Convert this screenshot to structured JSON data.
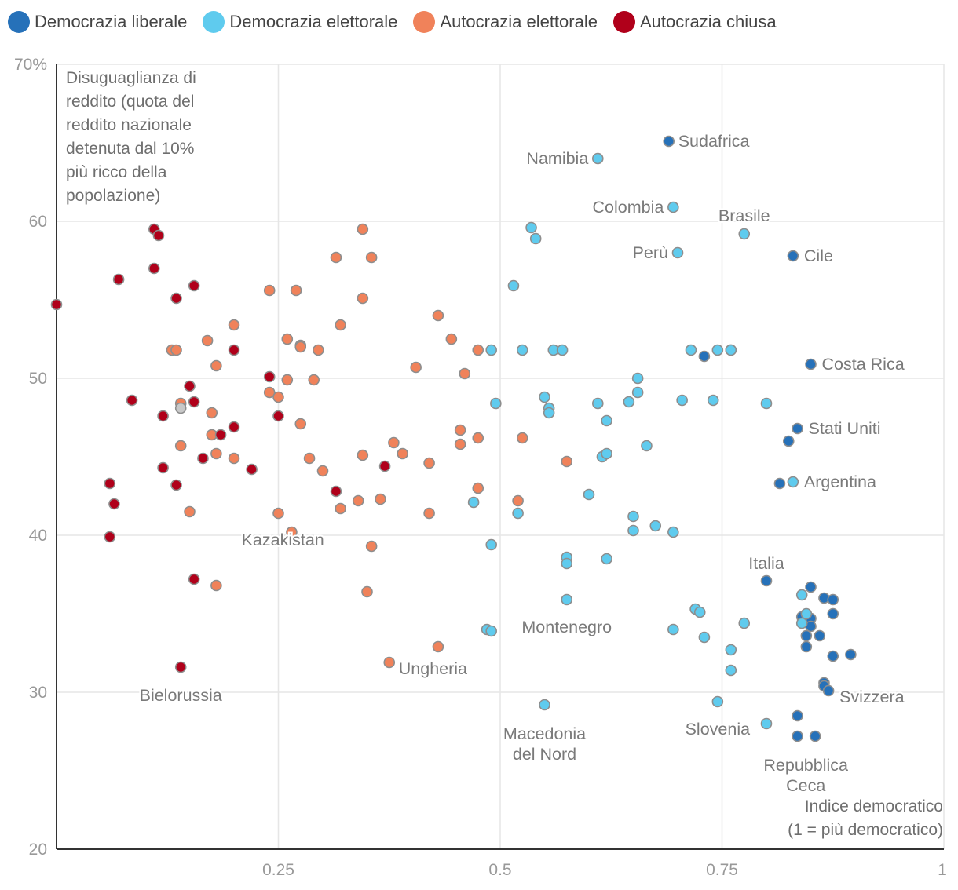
{
  "legend": [
    {
      "label": "Democrazia liberale",
      "color": "#2671b9"
    },
    {
      "label": "Democrazia elettorale",
      "color": "#5fcbee"
    },
    {
      "label": "Autocrazia elettorale",
      "color": "#f0825a"
    },
    {
      "label": "Autocrazia chiusa",
      "color": "#b0001a"
    }
  ],
  "chart_data": {
    "type": "scatter",
    "title": "",
    "ylabel_lines": [
      "Disuguaglianza di",
      "reddito (quota del",
      "reddito nazionale",
      "detenuta dal 10%",
      "più ricco della",
      "popolazione)"
    ],
    "xlabel_lines": [
      "Indice democratico",
      "(1 = più democratico)"
    ],
    "xlim": [
      0,
      1
    ],
    "ylim": [
      20,
      70
    ],
    "x_ticks": [
      0.25,
      0.5,
      0.75,
      1
    ],
    "x_tick_labels": [
      "0.25",
      "0.5",
      "0.75",
      "1"
    ],
    "y_ticks": [
      20,
      30,
      40,
      50,
      60,
      70
    ],
    "y_tick_labels": [
      "20",
      "30",
      "40",
      "50",
      "60",
      "70%"
    ],
    "grid": true,
    "legend_position": "top",
    "unclassified_color": "#c8c8c8",
    "series": [
      {
        "name": "Democrazia liberale",
        "color": "#2671b9",
        "points": [
          [
            0.69,
            65.1
          ],
          [
            0.83,
            57.8
          ],
          [
            0.85,
            50.9
          ],
          [
            0.76,
            51.8
          ],
          [
            0.73,
            51.4
          ],
          [
            0.835,
            46.8
          ],
          [
            0.825,
            46.0
          ],
          [
            0.815,
            43.3
          ],
          [
            0.8,
            37.1
          ],
          [
            0.85,
            36.7
          ],
          [
            0.865,
            36.0
          ],
          [
            0.875,
            35.9
          ],
          [
            0.85,
            34.7
          ],
          [
            0.875,
            35.0
          ],
          [
            0.84,
            34.8
          ],
          [
            0.845,
            33.6
          ],
          [
            0.86,
            33.6
          ],
          [
            0.845,
            32.9
          ],
          [
            0.85,
            34.2
          ],
          [
            0.875,
            32.3
          ],
          [
            0.895,
            32.4
          ],
          [
            0.865,
            30.6
          ],
          [
            0.865,
            30.4
          ],
          [
            0.87,
            30.1
          ],
          [
            0.835,
            28.5
          ],
          [
            0.835,
            27.2
          ],
          [
            0.855,
            27.2
          ]
        ]
      },
      {
        "name": "Democrazia elettorale",
        "color": "#5fcbee",
        "points": [
          [
            0.61,
            64.0
          ],
          [
            0.695,
            60.9
          ],
          [
            0.775,
            59.2
          ],
          [
            0.7,
            58.0
          ],
          [
            0.535,
            59.6
          ],
          [
            0.54,
            58.9
          ],
          [
            0.515,
            55.9
          ],
          [
            0.49,
            51.8
          ],
          [
            0.525,
            51.8
          ],
          [
            0.56,
            51.8
          ],
          [
            0.57,
            51.8
          ],
          [
            0.715,
            51.8
          ],
          [
            0.745,
            51.8
          ],
          [
            0.76,
            51.8
          ],
          [
            0.655,
            50.0
          ],
          [
            0.655,
            49.1
          ],
          [
            0.55,
            48.8
          ],
          [
            0.495,
            48.4
          ],
          [
            0.61,
            48.4
          ],
          [
            0.645,
            48.5
          ],
          [
            0.705,
            48.6
          ],
          [
            0.74,
            48.6
          ],
          [
            0.8,
            48.4
          ],
          [
            0.555,
            48.1
          ],
          [
            0.555,
            47.8
          ],
          [
            0.62,
            47.3
          ],
          [
            0.665,
            45.7
          ],
          [
            0.615,
            45.0
          ],
          [
            0.62,
            45.2
          ],
          [
            0.83,
            43.4
          ],
          [
            0.6,
            42.6
          ],
          [
            0.47,
            42.1
          ],
          [
            0.52,
            41.4
          ],
          [
            0.65,
            41.2
          ],
          [
            0.675,
            40.6
          ],
          [
            0.65,
            40.3
          ],
          [
            0.695,
            40.2
          ],
          [
            0.49,
            39.4
          ],
          [
            0.575,
            38.6
          ],
          [
            0.575,
            38.2
          ],
          [
            0.62,
            38.5
          ],
          [
            0.84,
            36.2
          ],
          [
            0.575,
            35.9
          ],
          [
            0.72,
            35.3
          ],
          [
            0.725,
            35.1
          ],
          [
            0.845,
            35.0
          ],
          [
            0.775,
            34.4
          ],
          [
            0.84,
            34.4
          ],
          [
            0.485,
            34.0
          ],
          [
            0.49,
            33.9
          ],
          [
            0.695,
            34.0
          ],
          [
            0.73,
            33.5
          ],
          [
            0.76,
            32.7
          ],
          [
            0.76,
            31.4
          ],
          [
            0.55,
            29.2
          ],
          [
            0.745,
            29.4
          ],
          [
            0.8,
            28.0
          ]
        ]
      },
      {
        "name": "Autocrazia elettorale",
        "color": "#f0825a",
        "points": [
          [
            0.345,
            59.5
          ],
          [
            0.315,
            57.7
          ],
          [
            0.355,
            57.7
          ],
          [
            0.24,
            55.6
          ],
          [
            0.27,
            55.6
          ],
          [
            0.345,
            55.1
          ],
          [
            0.43,
            54.0
          ],
          [
            0.2,
            53.4
          ],
          [
            0.32,
            53.4
          ],
          [
            0.13,
            51.8
          ],
          [
            0.135,
            51.8
          ],
          [
            0.17,
            52.4
          ],
          [
            0.26,
            52.5
          ],
          [
            0.275,
            52.1
          ],
          [
            0.275,
            52.0
          ],
          [
            0.295,
            51.8
          ],
          [
            0.445,
            52.5
          ],
          [
            0.475,
            51.8
          ],
          [
            0.18,
            50.8
          ],
          [
            0.405,
            50.7
          ],
          [
            0.46,
            50.3
          ],
          [
            0.26,
            49.9
          ],
          [
            0.29,
            49.9
          ],
          [
            0.24,
            49.1
          ],
          [
            0.25,
            48.8
          ],
          [
            0.14,
            48.4
          ],
          [
            0.175,
            47.8
          ],
          [
            0.275,
            47.1
          ],
          [
            0.455,
            46.7
          ],
          [
            0.175,
            46.4
          ],
          [
            0.475,
            46.2
          ],
          [
            0.525,
            46.2
          ],
          [
            0.14,
            45.7
          ],
          [
            0.455,
            45.8
          ],
          [
            0.38,
            45.9
          ],
          [
            0.18,
            45.2
          ],
          [
            0.2,
            44.9
          ],
          [
            0.285,
            44.9
          ],
          [
            0.345,
            45.1
          ],
          [
            0.39,
            45.2
          ],
          [
            0.42,
            44.6
          ],
          [
            0.575,
            44.7
          ],
          [
            0.3,
            44.1
          ],
          [
            0.475,
            43.0
          ],
          [
            0.34,
            42.2
          ],
          [
            0.365,
            42.3
          ],
          [
            0.52,
            42.2
          ],
          [
            0.15,
            41.5
          ],
          [
            0.25,
            41.4
          ],
          [
            0.32,
            41.7
          ],
          [
            0.42,
            41.4
          ],
          [
            0.265,
            40.2
          ],
          [
            0.355,
            39.3
          ],
          [
            0.18,
            36.8
          ],
          [
            0.35,
            36.4
          ],
          [
            0.43,
            32.9
          ],
          [
            0.375,
            31.9
          ]
        ]
      },
      {
        "name": "Autocrazia chiusa",
        "color": "#b0001a",
        "points": [
          [
            0.0,
            54.7
          ],
          [
            0.11,
            59.5
          ],
          [
            0.115,
            59.1
          ],
          [
            0.07,
            56.3
          ],
          [
            0.11,
            57.0
          ],
          [
            0.135,
            55.1
          ],
          [
            0.155,
            55.9
          ],
          [
            0.2,
            51.8
          ],
          [
            0.15,
            49.5
          ],
          [
            0.24,
            50.1
          ],
          [
            0.085,
            48.6
          ],
          [
            0.155,
            48.5
          ],
          [
            0.12,
            47.6
          ],
          [
            0.25,
            47.6
          ],
          [
            0.2,
            46.9
          ],
          [
            0.185,
            46.4
          ],
          [
            0.165,
            44.9
          ],
          [
            0.22,
            44.2
          ],
          [
            0.12,
            44.3
          ],
          [
            0.37,
            44.4
          ],
          [
            0.06,
            43.3
          ],
          [
            0.135,
            43.2
          ],
          [
            0.315,
            42.8
          ],
          [
            0.065,
            42.0
          ],
          [
            0.06,
            39.9
          ],
          [
            0.155,
            37.2
          ],
          [
            0.14,
            31.6
          ]
        ]
      },
      {
        "name": "",
        "color": "#c8c8c8",
        "points": [
          [
            0.14,
            48.1
          ]
        ]
      }
    ],
    "annotations": [
      {
        "text": "Sudafrica",
        "x": 0.69,
        "y": 65.1,
        "anchor": "start",
        "dx": 12,
        "dy": 0
      },
      {
        "text": "Namibia",
        "x": 0.61,
        "y": 64.0,
        "anchor": "end",
        "dx": -12,
        "dy": 0
      },
      {
        "text": "Colombia",
        "x": 0.695,
        "y": 60.9,
        "anchor": "end",
        "dx": -12,
        "dy": 0
      },
      {
        "text": "Brasile",
        "x": 0.775,
        "y": 59.2,
        "anchor": "middle",
        "dx": 0,
        "dy": -23
      },
      {
        "text": "Perù",
        "x": 0.7,
        "y": 58.0,
        "anchor": "end",
        "dx": -12,
        "dy": 0
      },
      {
        "text": "Cile",
        "x": 0.83,
        "y": 57.8,
        "anchor": "start",
        "dx": 14,
        "dy": 0
      },
      {
        "text": "Costa Rica",
        "x": 0.85,
        "y": 50.9,
        "anchor": "start",
        "dx": 14,
        "dy": 0
      },
      {
        "text": "Stati Uniti",
        "x": 0.835,
        "y": 46.8,
        "anchor": "start",
        "dx": 14,
        "dy": 0
      },
      {
        "text": "Argentina",
        "x": 0.83,
        "y": 43.4,
        "anchor": "start",
        "dx": 14,
        "dy": 0
      },
      {
        "text": "Kazakistan",
        "x": 0.255,
        "y": 41.4,
        "anchor": "middle",
        "dx": 0,
        "dy": 34
      },
      {
        "text": "Italia",
        "x": 0.8,
        "y": 37.1,
        "anchor": "middle",
        "dx": 0,
        "dy": -22
      },
      {
        "text": "Montenegro",
        "x": 0.575,
        "y": 35.9,
        "anchor": "middle",
        "dx": 0,
        "dy": 35
      },
      {
        "text": "Ungheria",
        "x": 0.375,
        "y": 31.9,
        "anchor": "start",
        "dx": 12,
        "dy": 8
      },
      {
        "text": "Svizzera",
        "x": 0.87,
        "y": 30.1,
        "anchor": "start",
        "dx": 14,
        "dy": 8
      },
      {
        "text": "Bielorussia",
        "x": 0.14,
        "y": 31.6,
        "anchor": "middle",
        "dx": 0,
        "dy": 36
      },
      {
        "text": "Slovenia",
        "x": 0.745,
        "y": 29.4,
        "anchor": "middle",
        "dx": 0,
        "dy": 35
      },
      {
        "text": "Macedonia",
        "x": 0.55,
        "y": 29.2,
        "anchor": "middle",
        "dx": 0,
        "dy": 37
      },
      {
        "text": "del Nord",
        "x": 0.55,
        "y": 29.2,
        "anchor": "middle",
        "dx": 0,
        "dy": 63
      },
      {
        "text": "Repubblica",
        "x": 0.84,
        "y": 27.2,
        "anchor": "middle",
        "dx": 5,
        "dy": 37
      },
      {
        "text": "Ceca",
        "x": 0.84,
        "y": 27.2,
        "anchor": "middle",
        "dx": 5,
        "dy": 63
      }
    ]
  }
}
